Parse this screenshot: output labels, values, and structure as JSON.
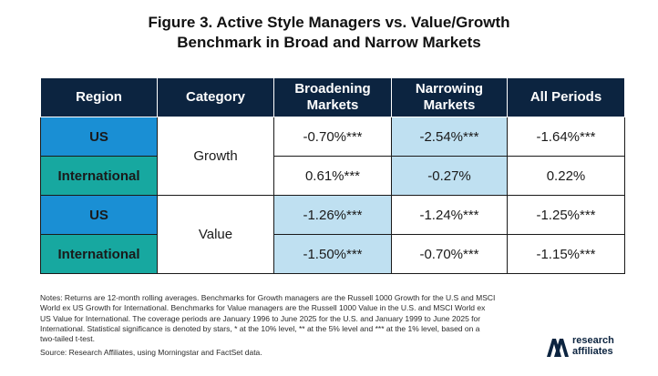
{
  "title": {
    "line1": "Figure 3. Active Style Managers vs. Value/Growth",
    "line2": "Benchmark in Broad and Narrow Markets"
  },
  "table": {
    "headers": {
      "region": "Region",
      "category": "Category",
      "broadening_1": "Broadening",
      "broadening_2": "Markets",
      "narrowing_1": "Narrowing",
      "narrowing_2": "Markets",
      "all": "All Periods"
    },
    "rows": [
      {
        "region": "US",
        "category": "Growth",
        "broadening": "-0.70%***",
        "narrowing": "-2.54%***",
        "all": "-1.64%***"
      },
      {
        "region": "International",
        "broadening": "0.61%***",
        "narrowing": "-0.27%",
        "all": "0.22%"
      },
      {
        "region": "US",
        "category": "Value",
        "broadening": "-1.26%***",
        "narrowing": "-1.24%***",
        "all": "-1.25%***"
      },
      {
        "region": "International",
        "broadening": "-1.50%***",
        "narrowing": "-0.70%***",
        "all": "-1.15%***"
      }
    ]
  },
  "notes": "Notes: Returns are 12-month rolling averages. Benchmarks for Growth managers are the Russell 1000 Growth for the U.S and MSCI World ex US Growth for International. Benchmarks for Value managers are the Russell 1000 Value in the U.S. and MSCI World ex US Value for International. The coverage periods are January 1996 to June 2025 for the U.S. and January 1999 to June 2025 for International. Statistical significance is denoted by stars, * at the 10% level, ** at the 5% level and *** at the 1% level, based on a two-tailed t-test.",
  "source": "Source: Research Affiliates, using Morningstar and FactSet data.",
  "logo": {
    "line1": "research",
    "line2": "affiliates"
  },
  "colors": {
    "header_bg": "#0c2440",
    "us_bg": "#1a8fd4",
    "intl_bg": "#17a8a0",
    "highlight_bg": "#bfe0f1"
  }
}
